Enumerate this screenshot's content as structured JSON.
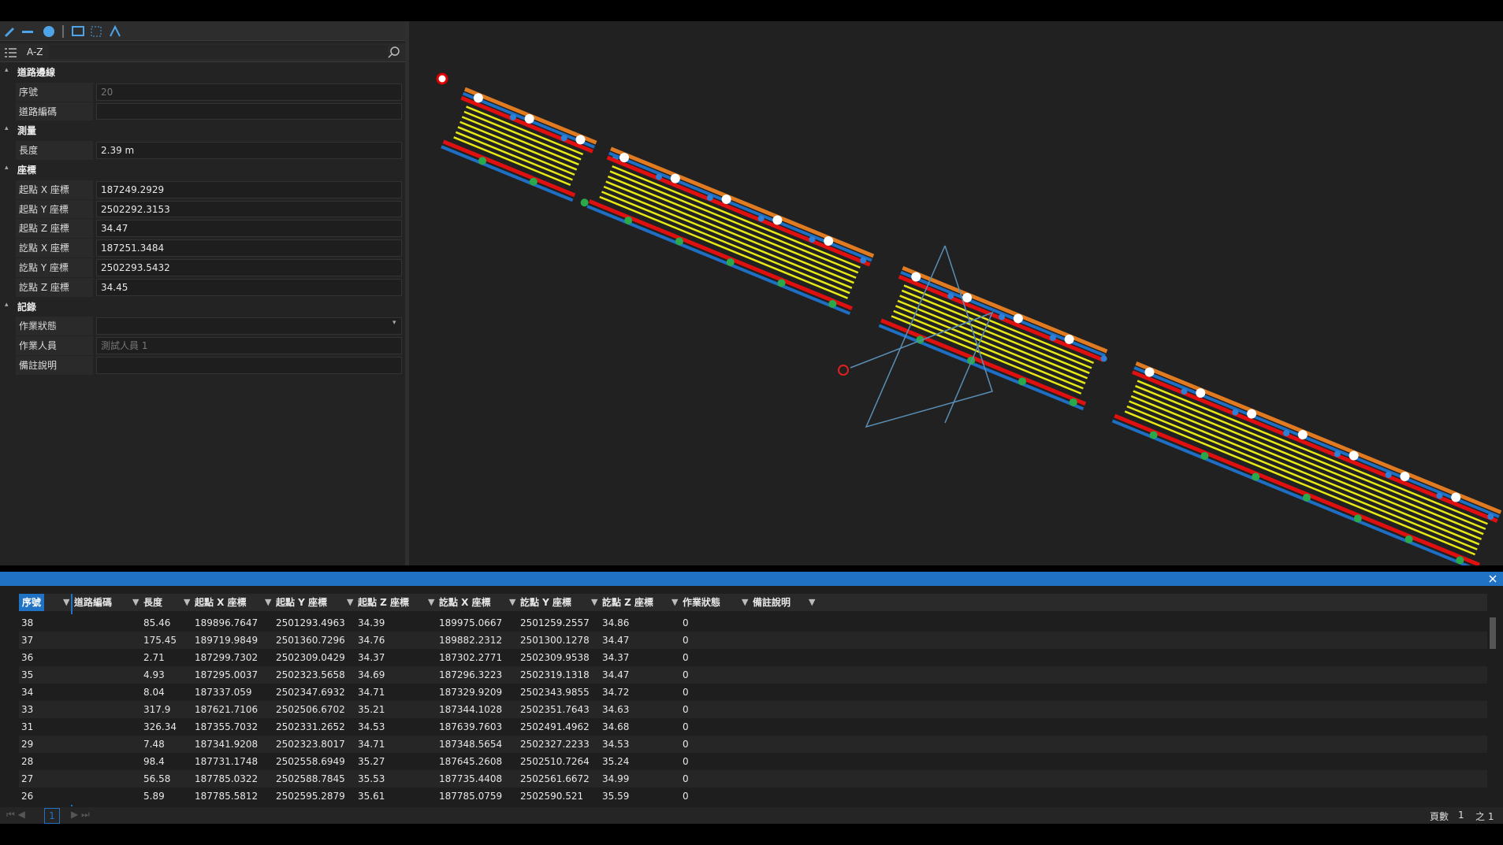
{
  "toolbar": {
    "sort": "A-Z"
  },
  "properties": {
    "groups": [
      {
        "title": "道路邊線",
        "items": [
          {
            "label": "序號",
            "value": "20"
          },
          {
            "label": "道路編碼"
          }
        ]
      },
      {
        "title": "測量",
        "items": [
          {
            "label": "長度",
            "value": "2.39 m"
          }
        ]
      },
      {
        "title": "座標",
        "items": [
          {
            "label": "起點 X 座標",
            "value": "187249.2929"
          },
          {
            "label": "起點 Y 座標",
            "value": "2502292.3153"
          },
          {
            "label": "起點 Z 座標",
            "value": "34.47"
          },
          {
            "label": "訖點 X 座標",
            "value": "187251.3484"
          },
          {
            "label": "訖點 Y 座標",
            "value": "2502293.5432"
          },
          {
            "label": "訖點 Z 座標",
            "value": "34.45"
          }
        ]
      },
      {
        "title": "記錄",
        "items": [
          {
            "label": "作業狀態"
          },
          {
            "label": "作業人員",
            "value": "測試人員 1"
          },
          {
            "label": "備註說明"
          }
        ]
      }
    ]
  },
  "table": {
    "columns": [
      "序號",
      "道路編碼",
      "長度",
      "起點 X 座標",
      "起點 Y 座標",
      "起點 Z 座標",
      "訖點 X 座標",
      "訖點 Y 座標",
      "訖點 Z 座標",
      "作業狀態",
      "備註說明"
    ],
    "rows": [
      [
        "38",
        null,
        "85.46",
        "189896.7647",
        "2501293.4963",
        "34.39",
        "189975.0667",
        "2501259.2557",
        "34.86",
        "0",
        null
      ],
      [
        "37",
        null,
        "175.45",
        "189719.9849",
        "2501360.7296",
        "34.76",
        "189882.2312",
        "2501300.1278",
        "34.47",
        "0",
        null
      ],
      [
        "36",
        null,
        "2.71",
        "187299.7302",
        "2502309.0429",
        "34.37",
        "187302.2771",
        "2502309.9538",
        "34.37",
        "0",
        null
      ],
      [
        "35",
        null,
        "4.93",
        "187295.0037",
        "2502323.5658",
        "34.69",
        "187296.3223",
        "2502319.1318",
        "34.47",
        "0",
        null
      ],
      [
        "34",
        null,
        "8.04",
        "187337.059",
        "2502347.6932",
        "34.71",
        "187329.9209",
        "2502343.9855",
        "34.72",
        "0",
        null
      ],
      [
        "33",
        null,
        "317.9",
        "187621.7106",
        "2502506.6702",
        "35.21",
        "187344.1028",
        "2502351.7643",
        "34.63",
        "0",
        null
      ],
      [
        "31",
        null,
        "326.34",
        "187355.7032",
        "2502331.2652",
        "34.53",
        "187639.7603",
        "2502491.4962",
        "34.68",
        "0",
        null
      ],
      [
        "29",
        null,
        "7.48",
        "187341.9208",
        "2502323.8017",
        "34.71",
        "187348.5654",
        "2502327.2233",
        "34.53",
        "0",
        null
      ],
      [
        "28",
        null,
        "98.4",
        "187731.1748",
        "2502558.6949",
        "35.27",
        "187645.2608",
        "2502510.7264",
        "35.24",
        "0",
        null
      ],
      [
        "27",
        null,
        "56.58",
        "187785.0322",
        "2502588.7845",
        "35.53",
        "187735.4408",
        "2502561.6672",
        "34.99",
        "0",
        null
      ],
      [
        "26",
        null,
        "5.89",
        "187785.5812",
        "2502595.2879",
        "35.61",
        "187785.0759",
        "2502590.521",
        "35.59",
        "0",
        null
      ]
    ]
  },
  "footer": {
    "current_page": "1",
    "page_label": "頁數",
    "page_value": "1",
    "page_total": "之 1"
  }
}
